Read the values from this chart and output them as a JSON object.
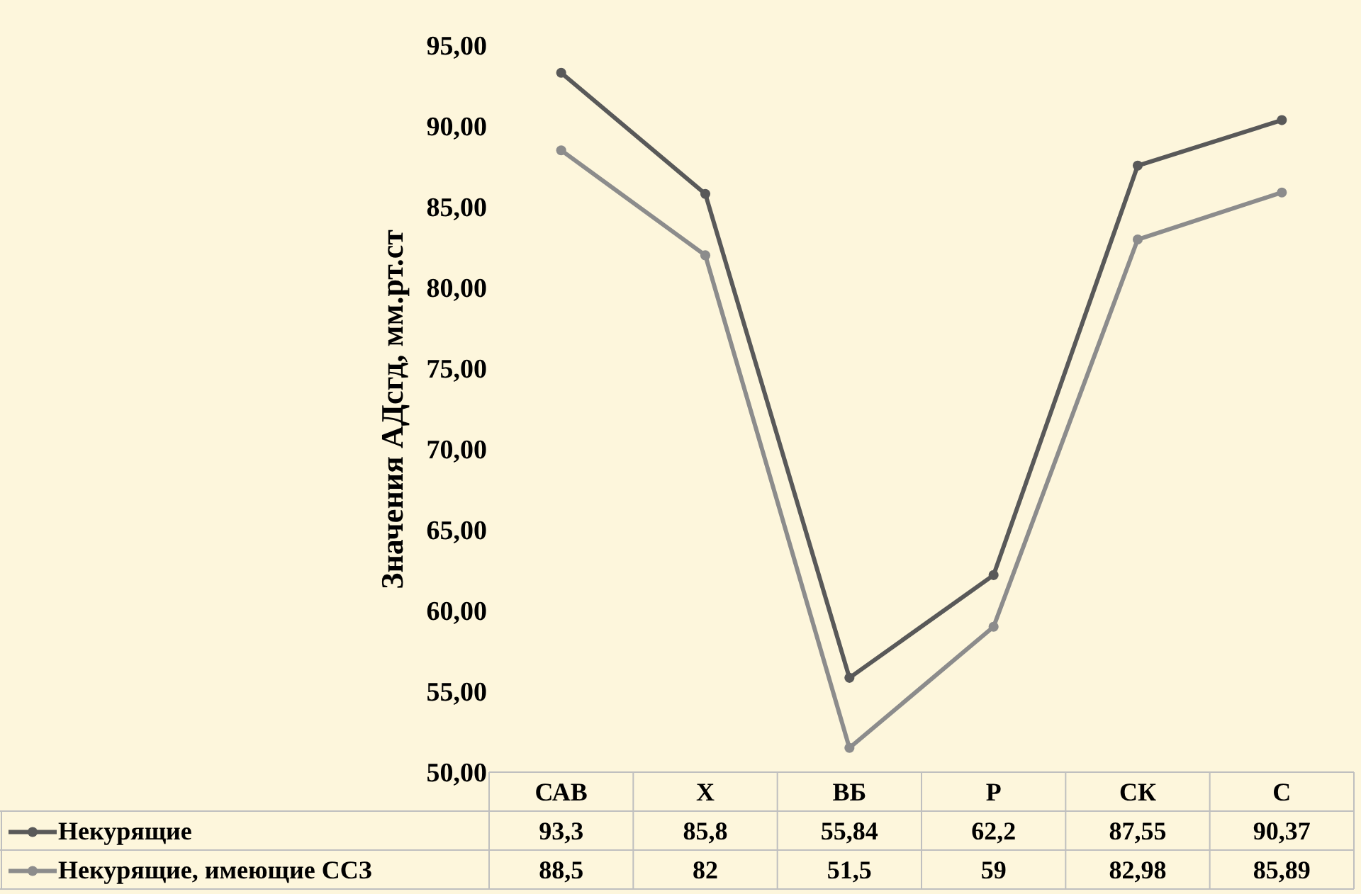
{
  "chart_data": {
    "type": "line",
    "ylabel": "Значения АДсгд, мм.рт.ст",
    "categories": [
      "САВ",
      "Х",
      "ВБ",
      "Р",
      "СК",
      "С"
    ],
    "series": [
      {
        "name": "Некурящие",
        "color": "#595959",
        "values": [
          93.3,
          85.8,
          55.84,
          62.2,
          87.55,
          90.37
        ],
        "value_labels": [
          "93,3",
          "85,8",
          "55,84",
          "62,2",
          "87,55",
          "90,37"
        ]
      },
      {
        "name": "Некурящие, имеющие ССЗ",
        "color": "#8c8c8c",
        "values": [
          88.5,
          82,
          51.5,
          59,
          82.98,
          85.89
        ],
        "value_labels": [
          "88,5",
          "82",
          "51,5",
          "59",
          "82,98",
          "85,89"
        ]
      }
    ],
    "ylim": [
      50,
      95
    ],
    "yticks": [
      {
        "value": 50,
        "label": "50,00"
      },
      {
        "value": 55,
        "label": "55,00"
      },
      {
        "value": 60,
        "label": "60,00"
      },
      {
        "value": 65,
        "label": "65,00"
      },
      {
        "value": 70,
        "label": "70,00"
      },
      {
        "value": 75,
        "label": "75,00"
      },
      {
        "value": 80,
        "label": "80,00"
      },
      {
        "value": 85,
        "label": "85,00"
      },
      {
        "value": 90,
        "label": "90,00"
      },
      {
        "value": 95,
        "label": "95,00"
      }
    ],
    "marker": "circle",
    "line_style": "solid",
    "legend": "bottom"
  }
}
